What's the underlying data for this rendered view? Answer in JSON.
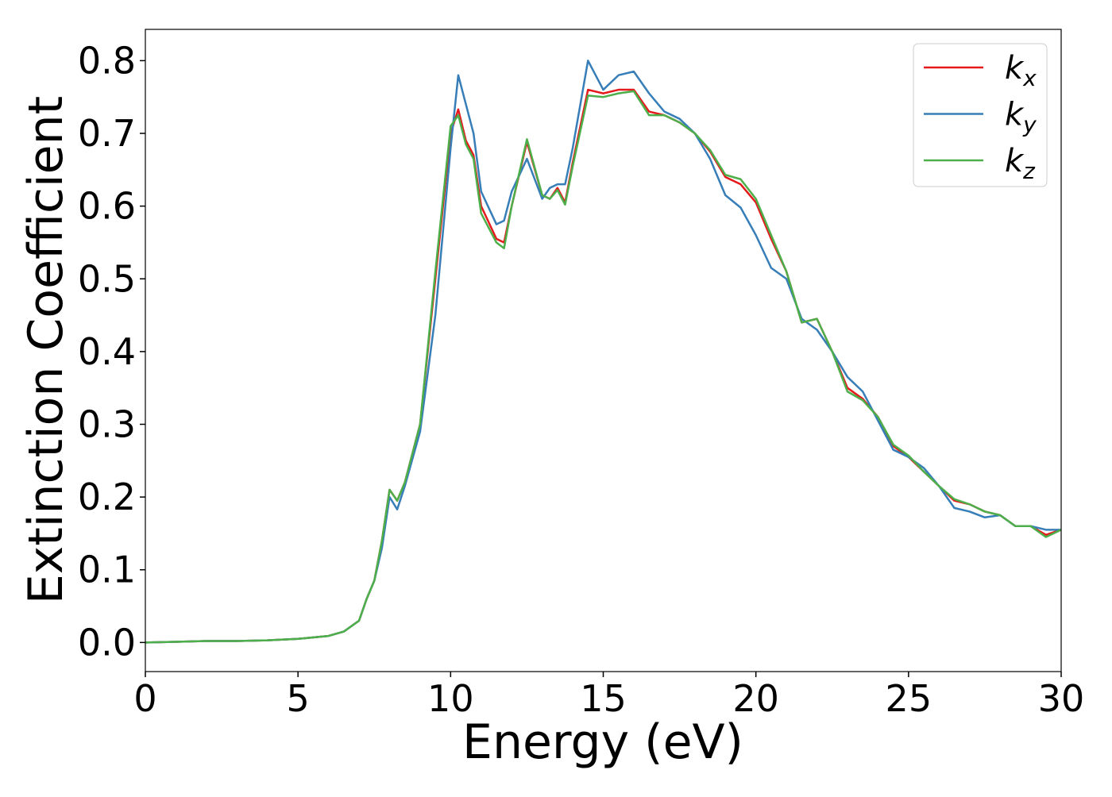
{
  "chart_data": {
    "type": "line",
    "xlabel": "Energy (eV)",
    "ylabel": "Extinction Coefficient",
    "x": [
      0,
      1,
      2,
      3,
      4,
      5,
      6,
      6.5,
      7,
      7.25,
      7.5,
      7.75,
      8,
      8.25,
      8.5,
      9,
      9.5,
      10,
      10.25,
      10.5,
      10.75,
      11,
      11.5,
      11.75,
      12,
      12.5,
      13,
      13.25,
      13.5,
      13.75,
      14,
      14.5,
      15,
      15.5,
      16,
      16.5,
      17,
      17.5,
      18,
      18.5,
      19,
      19.5,
      20,
      20.5,
      21,
      21.5,
      22,
      22.5,
      23,
      23.5,
      24,
      24.5,
      25,
      25.5,
      26,
      26.5,
      27,
      27.5,
      28,
      28.5,
      29,
      29.5,
      30
    ],
    "series": [
      {
        "name": "kx",
        "color": "#e41a1c",
        "values": [
          0,
          0.001,
          0.002,
          0.002,
          0.003,
          0.005,
          0.009,
          0.015,
          0.03,
          0.06,
          0.085,
          0.14,
          0.21,
          0.195,
          0.22,
          0.3,
          0.5,
          0.7,
          0.733,
          0.69,
          0.67,
          0.6,
          0.555,
          0.55,
          0.6,
          0.688,
          0.615,
          0.61,
          0.625,
          0.605,
          0.66,
          0.76,
          0.755,
          0.76,
          0.76,
          0.73,
          0.725,
          0.715,
          0.7,
          0.675,
          0.64,
          0.63,
          0.605,
          0.555,
          0.51,
          0.44,
          0.445,
          0.4,
          0.35,
          0.335,
          0.31,
          0.27,
          0.255,
          0.235,
          0.215,
          0.195,
          0.19,
          0.18,
          0.175,
          0.16,
          0.16,
          0.148,
          0.155
        ]
      },
      {
        "name": "ky",
        "color": "#377eb8",
        "values": [
          0,
          0.001,
          0.002,
          0.002,
          0.003,
          0.005,
          0.009,
          0.015,
          0.03,
          0.06,
          0.085,
          0.13,
          0.2,
          0.183,
          0.215,
          0.29,
          0.45,
          0.68,
          0.78,
          0.74,
          0.7,
          0.62,
          0.575,
          0.58,
          0.62,
          0.665,
          0.61,
          0.625,
          0.63,
          0.63,
          0.68,
          0.8,
          0.76,
          0.78,
          0.785,
          0.755,
          0.73,
          0.72,
          0.7,
          0.665,
          0.615,
          0.598,
          0.56,
          0.515,
          0.5,
          0.445,
          0.43,
          0.4,
          0.365,
          0.345,
          0.305,
          0.265,
          0.255,
          0.24,
          0.215,
          0.185,
          0.18,
          0.172,
          0.175,
          0.16,
          0.16,
          0.155,
          0.155
        ]
      },
      {
        "name": "kz",
        "color": "#4daf4a",
        "values": [
          0,
          0.001,
          0.002,
          0.002,
          0.003,
          0.005,
          0.009,
          0.015,
          0.03,
          0.06,
          0.085,
          0.14,
          0.21,
          0.195,
          0.22,
          0.3,
          0.51,
          0.71,
          0.725,
          0.685,
          0.665,
          0.59,
          0.55,
          0.542,
          0.6,
          0.692,
          0.615,
          0.61,
          0.622,
          0.602,
          0.655,
          0.752,
          0.75,
          0.755,
          0.758,
          0.725,
          0.725,
          0.715,
          0.7,
          0.677,
          0.643,
          0.637,
          0.61,
          0.56,
          0.51,
          0.44,
          0.445,
          0.4,
          0.345,
          0.333,
          0.31,
          0.272,
          0.257,
          0.235,
          0.215,
          0.197,
          0.19,
          0.18,
          0.175,
          0.16,
          0.16,
          0.145,
          0.155
        ]
      }
    ],
    "xlim": [
      0,
      30
    ],
    "xticks": [
      0,
      5,
      10,
      15,
      20,
      25,
      30
    ],
    "ylim": [
      -0.04,
      0.843
    ],
    "yticks": [
      {
        "value": 0,
        "label": "0.0"
      },
      0.1,
      0.2,
      0.3,
      0.4,
      0.5,
      0.6,
      0.7,
      0.8
    ],
    "legend": "upper right"
  }
}
